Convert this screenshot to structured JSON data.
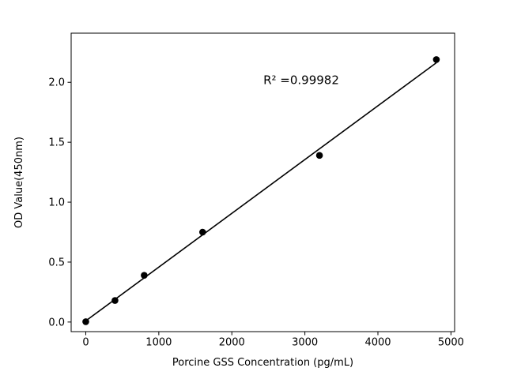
{
  "chart_data": {
    "type": "scatter",
    "title": "",
    "xlabel": "Porcine GSS Concentration (pg/mL)",
    "ylabel": "OD Value(450nm)",
    "annotation": "R² =0.99982",
    "x": [
      0,
      400,
      800,
      1600,
      3200,
      4800
    ],
    "y": [
      0.003,
      0.18,
      0.39,
      0.75,
      1.39,
      2.19
    ],
    "fit_line": {
      "x": [
        0,
        4800
      ],
      "y": [
        0.0095,
        2.163
      ]
    },
    "xticks": [
      {
        "value": 0,
        "label": "0"
      },
      {
        "value": 1000,
        "label": "1000"
      },
      {
        "value": 2000,
        "label": "2000"
      },
      {
        "value": 3000,
        "label": "3000"
      },
      {
        "value": 4000,
        "label": "4000"
      },
      {
        "value": 5000,
        "label": "5000"
      }
    ],
    "yticks": [
      {
        "value": 0.0,
        "label": "0.0"
      },
      {
        "value": 0.5,
        "label": "0.5"
      },
      {
        "value": 1.0,
        "label": "1.0"
      },
      {
        "value": 1.5,
        "label": "1.5"
      },
      {
        "value": 2.0,
        "label": "2.0"
      }
    ],
    "xlim": [
      -200,
      5050
    ],
    "ylim": [
      -0.08,
      2.41
    ],
    "grid": false,
    "legend": "none",
    "marker_color": "#000000",
    "line_color": "#000000",
    "background": "#ffffff"
  }
}
